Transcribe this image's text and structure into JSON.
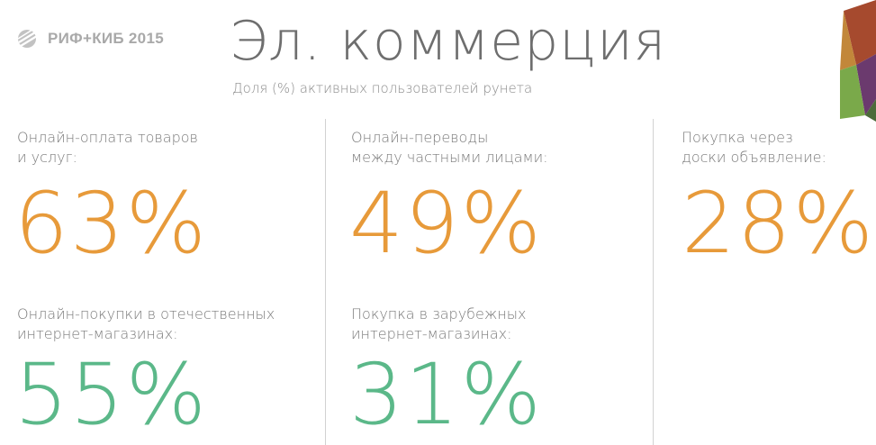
{
  "header": {
    "logo_text": "РИФ+КИБ 2015",
    "title": "Эл. коммерция",
    "subtitle": "Доля (%) активных пользователей рунета"
  },
  "stats": [
    {
      "label": "Онлайн-оплата товаров\nи услуг:",
      "value": "63%",
      "color": "#e79a3a"
    },
    {
      "label": "Онлайн-переводы\nмежду частными лицами:",
      "value": "49%",
      "color": "#e79a3a"
    },
    {
      "label": "Покупка через\nдоски объявление:",
      "value": "28%",
      "color": "#e79a3a"
    },
    {
      "label": "Онлайн-покупки в отечественных\nинтернет-магазинах:",
      "value": "55%",
      "color": "#5bb889"
    },
    {
      "label": "Покупка в зарубежных\nинтернет-магазинах:",
      "value": "31%",
      "color": "#5bb889"
    }
  ],
  "colors": {
    "accent_orange": "#e79a3a",
    "accent_green": "#5bb889",
    "title_gray": "#6e6e6e"
  },
  "icons": {
    "logo": "rif-kib-logo-icon",
    "corner": "polygon-decoration-icon"
  }
}
